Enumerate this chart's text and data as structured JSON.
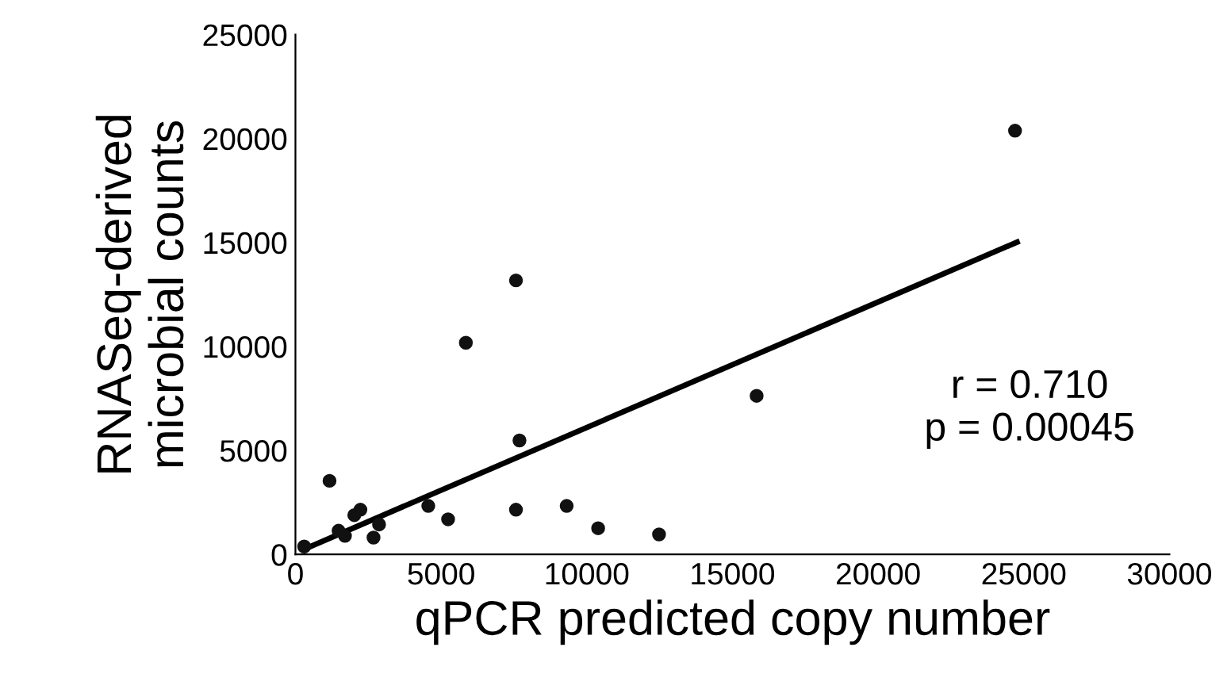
{
  "chart_data": {
    "type": "scatter",
    "xlabel": "qPCR predicted copy number",
    "ylabel": "RNASeq-derived\nmicrobial counts",
    "annotations": [
      "r = 0.710\np = 0.00045"
    ],
    "series": [
      {
        "color": "#111111",
        "x": [
          300,
          1170,
          1480,
          1700,
          2020,
          2230,
          2680,
          2870,
          4560,
          5240,
          5850,
          7570,
          7570,
          7690,
          9310,
          10390,
          12480,
          15830,
          24700
        ],
        "values": [
          380,
          3540,
          1140,
          890,
          1890,
          2150,
          810,
          1440,
          2330,
          1690,
          10180,
          13180,
          2150,
          5480,
          2330,
          1260,
          960,
          7630,
          20380
        ]
      },
      {
        "type": "line",
        "color": "#000000",
        "x": [
          300,
          24770
        ],
        "values": [
          250,
          15020
        ]
      }
    ],
    "xlim": [
      0,
      30000
    ],
    "ylim": [
      0,
      25000
    ],
    "xticks": [
      0,
      5000,
      10000,
      15000,
      20000,
      25000,
      30000
    ],
    "yticks": [
      0,
      5000,
      10000,
      15000,
      20000,
      25000
    ],
    "grid": false,
    "legend": false
  }
}
